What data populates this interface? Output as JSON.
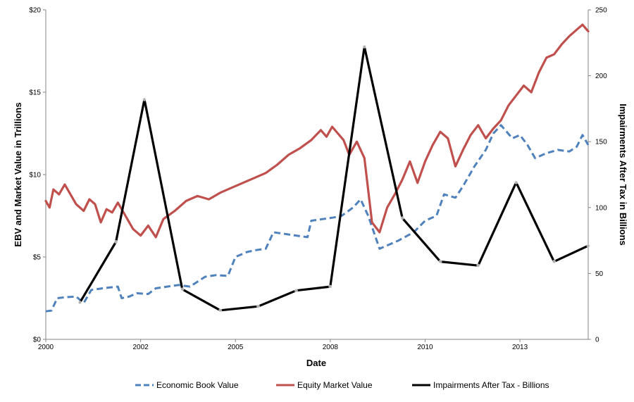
{
  "chart_data": {
    "type": "line",
    "title": "",
    "xlabel": "Date",
    "ylabel_left": "EBV and Market Value in Trillions",
    "ylabel_right": "Impairments After Tax in Billions",
    "x_ticks": [
      "2000",
      "2002",
      "2005",
      "2008",
      "2010",
      "2013"
    ],
    "x_tick_years": [
      2000,
      2002.5,
      2005,
      2007.5,
      2010,
      2012.5
    ],
    "xlim": [
      2000,
      2014.3
    ],
    "y_left_ticks": [
      "$0",
      "$5",
      "$10",
      "$15",
      "$20"
    ],
    "ylim_left": [
      0,
      20
    ],
    "y_right_ticks": [
      "0",
      "50",
      "100",
      "150",
      "200",
      "250"
    ],
    "ylim_right": [
      0,
      250
    ],
    "grid": false,
    "legend_position": "bottom",
    "series": [
      {
        "name": "Economic Book Value",
        "axis": "left",
        "color": "#4f81bd",
        "style": "dashed",
        "x": [
          2000.0,
          2000.15,
          2000.3,
          2000.5,
          2000.8,
          2001.0,
          2001.2,
          2001.5,
          2001.7,
          2001.9,
          2002.0,
          2002.2,
          2002.4,
          2002.7,
          2002.9,
          2003.2,
          2003.5,
          2003.8,
          2004.2,
          2004.5,
          2004.8,
          2005.0,
          2005.3,
          2005.5,
          2005.8,
          2006.0,
          2006.3,
          2006.6,
          2006.9,
          2007.0,
          2007.3,
          2007.6,
          2007.8,
          2008.1,
          2008.3,
          2008.5,
          2008.8,
          2009.0,
          2009.3,
          2009.7,
          2010.0,
          2010.3,
          2010.5,
          2010.8,
          2011.0,
          2011.3,
          2011.6,
          2011.8,
          2012.0,
          2012.3,
          2012.5,
          2012.7,
          2012.9,
          2013.2,
          2013.5,
          2013.8,
          2014.0,
          2014.15,
          2014.3
        ],
        "values": [
          1.7,
          1.75,
          2.5,
          2.55,
          2.6,
          2.2,
          3.0,
          3.1,
          3.15,
          3.2,
          2.5,
          2.6,
          2.8,
          2.75,
          3.1,
          3.2,
          3.3,
          3.2,
          3.8,
          3.9,
          3.85,
          5.0,
          5.3,
          5.4,
          5.5,
          6.5,
          6.4,
          6.3,
          6.2,
          7.2,
          7.3,
          7.4,
          7.5,
          8.0,
          8.5,
          7.5,
          5.5,
          5.7,
          6.0,
          6.5,
          7.2,
          7.5,
          8.8,
          8.6,
          9.3,
          10.5,
          11.5,
          12.5,
          13.0,
          12.2,
          12.4,
          11.8,
          11.0,
          11.3,
          11.5,
          11.4,
          11.7,
          12.4,
          11.8
        ]
      },
      {
        "name": "Equity Market Value",
        "axis": "left",
        "color": "#c0504d",
        "style": "solid",
        "x": [
          2000.0,
          2000.1,
          2000.2,
          2000.35,
          2000.5,
          2000.65,
          2000.8,
          2001.0,
          2001.15,
          2001.3,
          2001.45,
          2001.6,
          2001.75,
          2001.9,
          2002.1,
          2002.3,
          2002.5,
          2002.7,
          2002.9,
          2003.1,
          2003.4,
          2003.7,
          2004.0,
          2004.3,
          2004.6,
          2004.9,
          2005.2,
          2005.5,
          2005.8,
          2006.1,
          2006.4,
          2006.7,
          2007.0,
          2007.25,
          2007.4,
          2007.55,
          2007.7,
          2007.85,
          2008.0,
          2008.2,
          2008.4,
          2008.6,
          2008.8,
          2009.0,
          2009.2,
          2009.4,
          2009.6,
          2009.8,
          2010.0,
          2010.2,
          2010.4,
          2010.6,
          2010.8,
          2011.0,
          2011.2,
          2011.4,
          2011.6,
          2011.8,
          2012.0,
          2012.2,
          2012.4,
          2012.6,
          2012.8,
          2013.0,
          2013.2,
          2013.4,
          2013.6,
          2013.8,
          2014.0,
          2014.15,
          2014.3
        ],
        "values": [
          8.4,
          8.0,
          9.1,
          8.8,
          9.4,
          8.8,
          8.2,
          7.8,
          8.5,
          8.2,
          7.1,
          7.9,
          7.7,
          8.3,
          7.5,
          6.7,
          6.3,
          6.9,
          6.2,
          7.3,
          7.8,
          8.4,
          8.7,
          8.5,
          8.9,
          9.2,
          9.5,
          9.8,
          10.1,
          10.6,
          11.2,
          11.6,
          12.1,
          12.7,
          12.3,
          12.9,
          12.5,
          12.1,
          11.2,
          12.0,
          11.0,
          7.1,
          6.5,
          8.0,
          8.8,
          9.7,
          10.8,
          9.5,
          10.8,
          11.8,
          12.6,
          12.2,
          10.5,
          11.5,
          12.4,
          13.0,
          12.2,
          12.8,
          13.3,
          14.2,
          14.8,
          15.4,
          15.0,
          16.2,
          17.1,
          17.3,
          17.9,
          18.4,
          18.8,
          19.1,
          18.7
        ]
      },
      {
        "name": "Impairments After Tax - Billions",
        "axis": "right",
        "color": "#000000",
        "style": "solid",
        "x": [
          2000.9,
          2001.85,
          2002.6,
          2003.6,
          2004.6,
          2005.6,
          2006.6,
          2007.5,
          2008.4,
          2009.4,
          2010.4,
          2011.4,
          2012.4,
          2013.4,
          2014.3
        ],
        "values": [
          28,
          74,
          182,
          38,
          22,
          25,
          37,
          40,
          222,
          92,
          59,
          56,
          119,
          59,
          71
        ]
      }
    ]
  }
}
